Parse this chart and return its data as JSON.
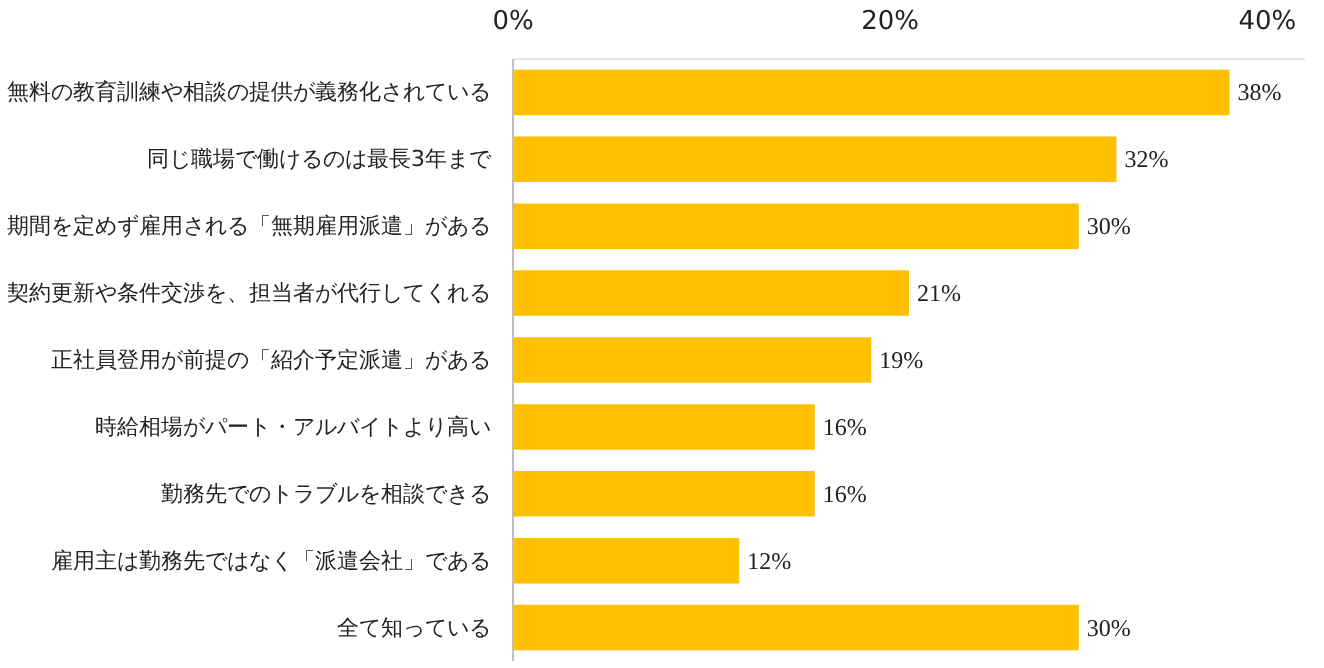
{
  "chart_data": {
    "type": "bar",
    "orientation": "horizontal",
    "categories": [
      "無料の教育訓練や相談の提供が義務化されている",
      "同じ職場で働けるのは最長3年まで",
      "期間を定めず雇用される「無期雇用派遣」がある",
      "契約更新や条件交渉を、担当者が代行してくれる",
      "正社員登用が前提の「紹介予定派遣」がある",
      "時給相場がパート・アルバイトより高い",
      "勤務先でのトラブルを相談できる",
      "雇用主は勤務先ではなく「派遣会社」である",
      "全て知っている"
    ],
    "values": [
      38,
      32,
      30,
      21,
      19,
      16,
      16,
      12,
      30
    ],
    "value_labels": [
      "38%",
      "32%",
      "30%",
      "21%",
      "19%",
      "16%",
      "16%",
      "12%",
      "30%"
    ],
    "color": "#ffc000",
    "xlim": [
      0,
      42
    ],
    "xticks": [
      {
        "value": 0,
        "label": "0%"
      },
      {
        "value": 20,
        "label": "20%"
      },
      {
        "value": 40,
        "label": "40%"
      }
    ],
    "grid": false
  }
}
